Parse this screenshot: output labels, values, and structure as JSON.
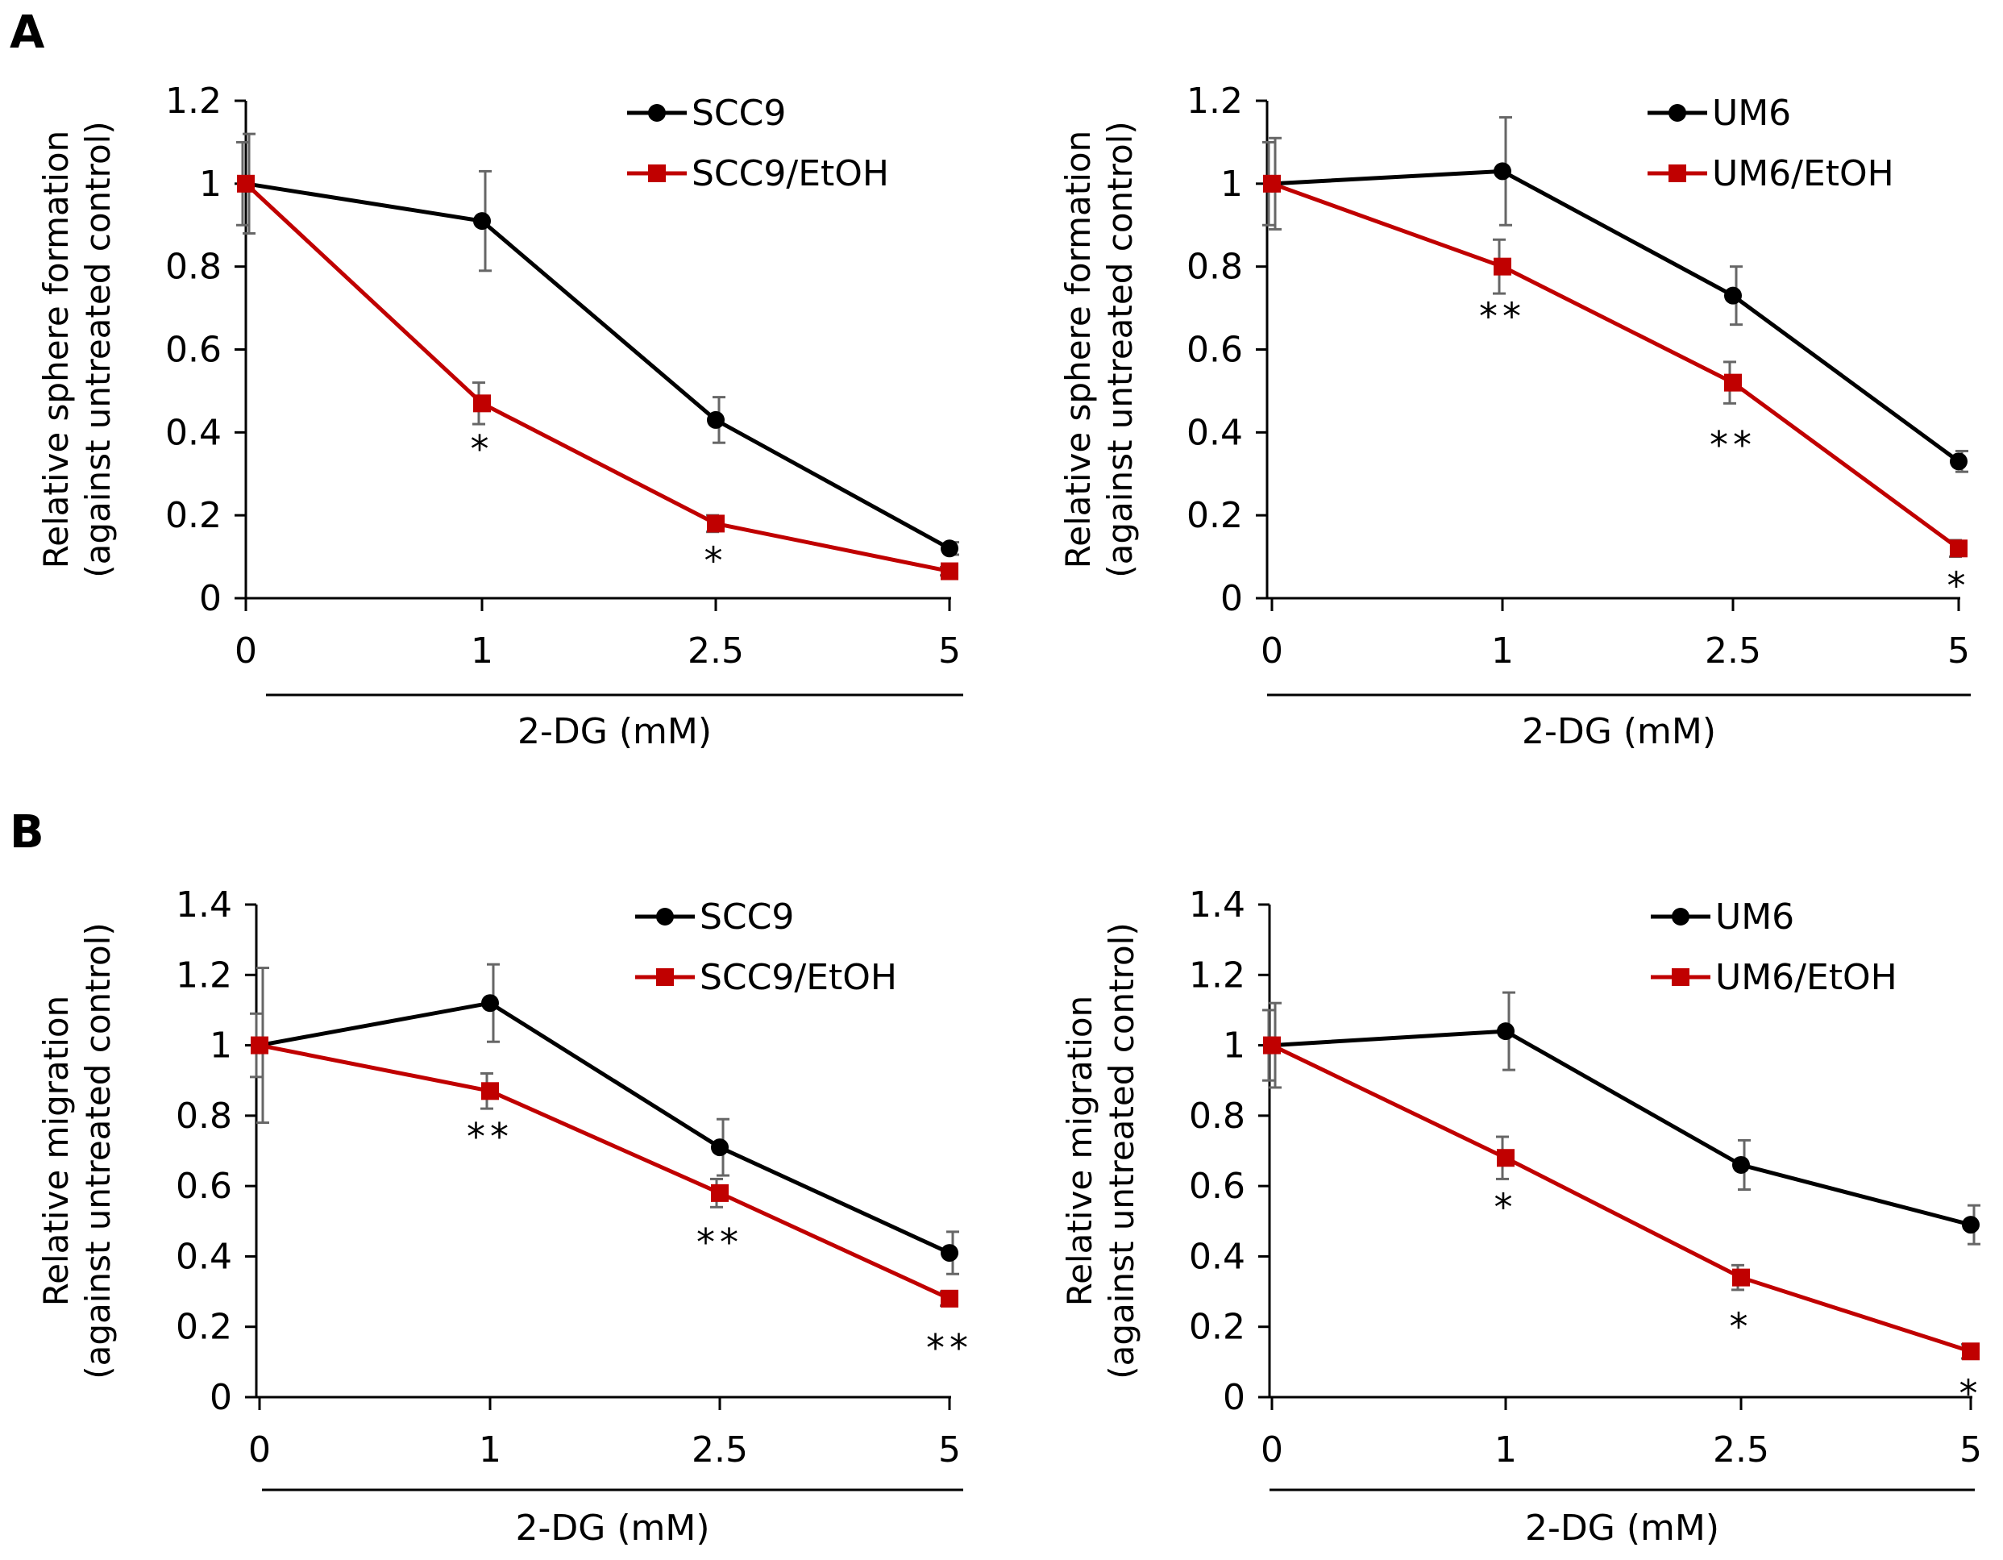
{
  "panel_labels": [
    "A",
    "B"
  ],
  "chart_data": [
    {
      "type": "line",
      "panel": "A",
      "title": "",
      "xlabel": "2-DG (mM)",
      "ylabel": [
        "Relative sphere formation",
        "(against untreated control)"
      ],
      "categories": [
        "0",
        "1",
        "2.5",
        "5"
      ],
      "ylim": [
        0,
        1.2
      ],
      "yticks": [
        "0",
        "0.2",
        "0.4",
        "0.6",
        "0.8",
        "1",
        "1.2"
      ],
      "legend_position": "top-right",
      "series": [
        {
          "name": "SCC9",
          "color": "#000000",
          "marker": "circle",
          "values": [
            1.0,
            0.91,
            0.43,
            0.12
          ],
          "errors": [
            0.12,
            0.12,
            0.055,
            0.015
          ]
        },
        {
          "name": "SCC9/EtOH",
          "color": "#c00000",
          "marker": "square",
          "values": [
            1.0,
            0.47,
            0.18,
            0.065
          ],
          "errors": [
            0.1,
            0.05,
            0.02,
            0.01
          ]
        }
      ],
      "annotations": [
        {
          "category_index": 1,
          "text": "*",
          "value": 0.36
        },
        {
          "category_index": 2,
          "text": "*",
          "value": 0.09
        }
      ]
    },
    {
      "type": "line",
      "panel": "A",
      "title": "",
      "xlabel": "2-DG (mM)",
      "ylabel": [
        "Relative sphere formation",
        "(against untreated control)"
      ],
      "categories": [
        "0",
        "1",
        "2.5",
        "5"
      ],
      "ylim": [
        0,
        1.2
      ],
      "yticks": [
        "0",
        "0.2",
        "0.4",
        "0.6",
        "0.8",
        "1",
        "1.2"
      ],
      "legend_position": "top-right",
      "series": [
        {
          "name": "UM6",
          "color": "#000000",
          "marker": "circle",
          "values": [
            1.0,
            1.03,
            0.73,
            0.33
          ],
          "errors": [
            0.11,
            0.13,
            0.07,
            0.025
          ]
        },
        {
          "name": "UM6/EtOH",
          "color": "#c00000",
          "marker": "square",
          "values": [
            1.0,
            0.8,
            0.52,
            0.12
          ],
          "errors": [
            0.1,
            0.065,
            0.05,
            0.02
          ]
        }
      ],
      "annotations": [
        {
          "category_index": 1,
          "text": "**",
          "value": 0.68
        },
        {
          "category_index": 2,
          "text": "**",
          "value": 0.37
        },
        {
          "category_index": 3,
          "text": "*",
          "value": 0.03
        }
      ]
    },
    {
      "type": "line",
      "panel": "B",
      "title": "",
      "xlabel": "2-DG (mM)",
      "ylabel": [
        "Relative migration",
        "(against untreated control)"
      ],
      "categories": [
        "0",
        "1",
        "2.5",
        "5"
      ],
      "ylim": [
        0,
        1.4
      ],
      "yticks": [
        "0",
        "0.2",
        "0.4",
        "0.6",
        "0.8",
        "1",
        "1.2",
        "1.4"
      ],
      "legend_position": "top-right",
      "series": [
        {
          "name": "SCC9",
          "color": "#000000",
          "marker": "circle",
          "values": [
            1.0,
            1.12,
            0.71,
            0.41
          ],
          "errors": [
            0.22,
            0.11,
            0.08,
            0.06
          ]
        },
        {
          "name": "SCC9/EtOH",
          "color": "#c00000",
          "marker": "square",
          "values": [
            1.0,
            0.87,
            0.58,
            0.28
          ],
          "errors": [
            0.09,
            0.05,
            0.04,
            0.02
          ]
        }
      ],
      "annotations": [
        {
          "category_index": 1,
          "text": "**",
          "value": 0.74
        },
        {
          "category_index": 2,
          "text": "**",
          "value": 0.44
        },
        {
          "category_index": 3,
          "text": "**",
          "value": 0.14
        }
      ]
    },
    {
      "type": "line",
      "panel": "B",
      "title": "",
      "xlabel": "2-DG (mM)",
      "ylabel": [
        "Relative migration",
        "(against untreated control)"
      ],
      "categories": [
        "0",
        "1",
        "2.5",
        "5"
      ],
      "ylim": [
        0,
        1.4
      ],
      "yticks": [
        "0",
        "0.2",
        "0.4",
        "0.6",
        "0.8",
        "1",
        "1.2",
        "1.4"
      ],
      "legend_position": "top-right",
      "series": [
        {
          "name": "UM6",
          "color": "#000000",
          "marker": "circle",
          "values": [
            1.0,
            1.04,
            0.66,
            0.49
          ],
          "errors": [
            0.12,
            0.11,
            0.07,
            0.055
          ]
        },
        {
          "name": "UM6/EtOH",
          "color": "#c00000",
          "marker": "square",
          "values": [
            1.0,
            0.68,
            0.34,
            0.13
          ],
          "errors": [
            0.1,
            0.06,
            0.035,
            0.02
          ]
        }
      ],
      "annotations": [
        {
          "category_index": 1,
          "text": "*",
          "value": 0.54
        },
        {
          "category_index": 2,
          "text": "*",
          "value": 0.2
        },
        {
          "category_index": 3,
          "text": "*",
          "value": 0.01
        }
      ]
    }
  ]
}
